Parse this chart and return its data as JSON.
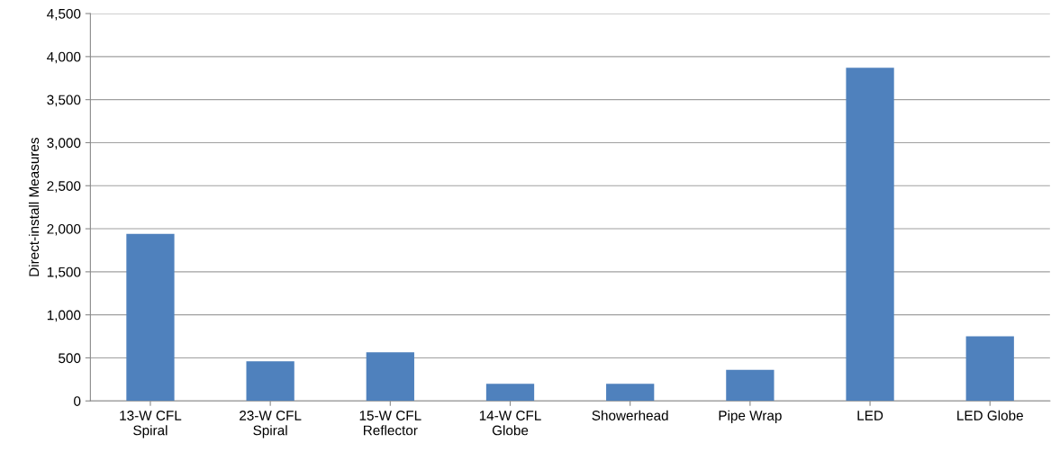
{
  "chart_data": {
    "type": "bar",
    "ylabel": "Direct-install Measures",
    "categories": [
      "13-W CFL\nSpiral",
      "23-W CFL\nSpiral",
      "15-W CFL\nReflector",
      "14-W CFL\nGlobe",
      "Showerhead",
      "Pipe Wrap",
      "LED",
      "LED Globe"
    ],
    "values": [
      1940,
      460,
      565,
      200,
      200,
      360,
      3870,
      750
    ],
    "color": "#4f81bd",
    "ylim": [
      0,
      4500
    ],
    "yticks": [
      {
        "value": 0,
        "label": "0"
      },
      {
        "value": 500,
        "label": "500"
      },
      {
        "value": 1000,
        "label": "1,000"
      },
      {
        "value": 1500,
        "label": "1,500"
      },
      {
        "value": 2000,
        "label": "2,000"
      },
      {
        "value": 2500,
        "label": "2,500"
      },
      {
        "value": 3000,
        "label": "3,000"
      },
      {
        "value": 3500,
        "label": "3,500"
      },
      {
        "value": 4000,
        "label": "4,000"
      },
      {
        "value": 4500,
        "label": "4,500"
      }
    ],
    "grid": "y"
  }
}
